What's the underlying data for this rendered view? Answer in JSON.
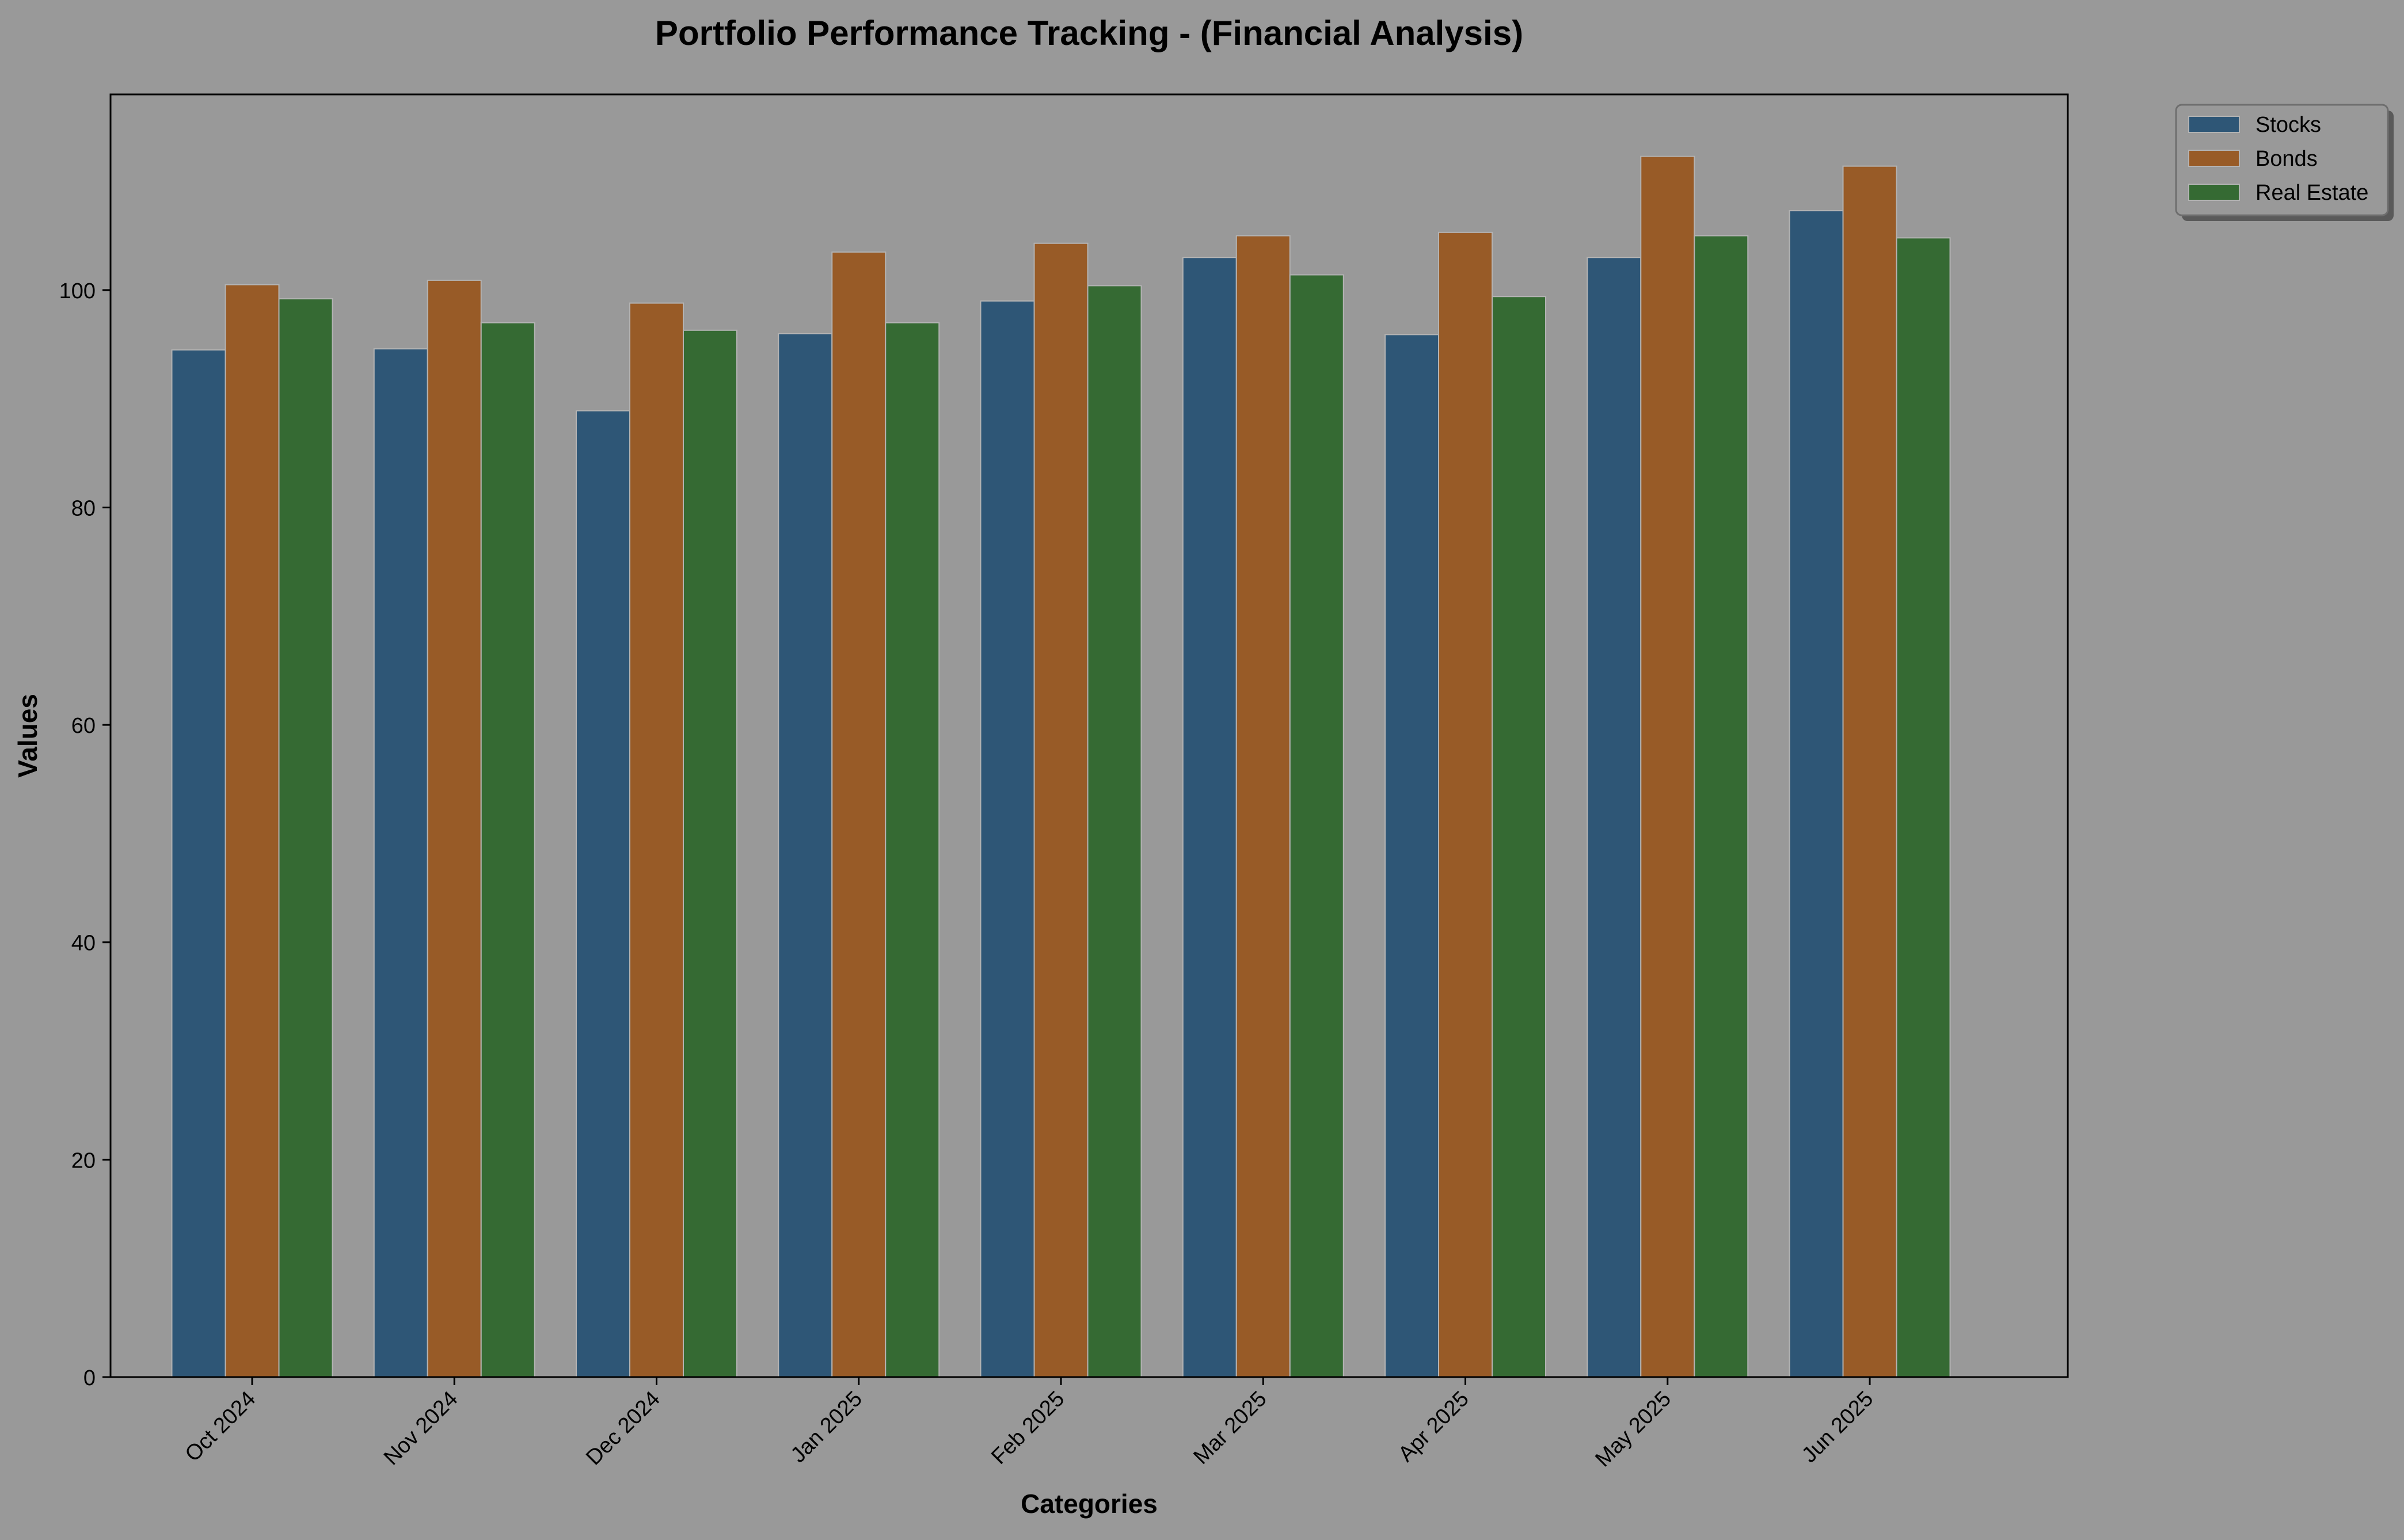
{
  "chart_data": {
    "type": "bar",
    "title": "Portfolio Performance Tracking - (Financial Analysis)",
    "xlabel": "Categories",
    "ylabel": "Values",
    "categories": [
      "Oct 2024",
      "Nov 2024",
      "Dec 2024",
      "Jan 2025",
      "Feb 2025",
      "Mar 2025",
      "Apr 2025",
      "May 2025",
      "Jun 2025"
    ],
    "series": [
      {
        "name": "Stocks",
        "color": "#2e5676",
        "values": [
          94.5,
          94.6,
          88.9,
          96.0,
          99.0,
          103.0,
          95.9,
          103.0,
          107.3
        ]
      },
      {
        "name": "Bonds",
        "color": "#985b27",
        "values": [
          100.5,
          100.9,
          98.8,
          103.5,
          104.3,
          105.0,
          105.3,
          112.3,
          111.4
        ]
      },
      {
        "name": "Real Estate",
        "color": "#356a33",
        "values": [
          99.2,
          97.0,
          96.3,
          97.0,
          100.4,
          101.4,
          99.4,
          105.0,
          104.8
        ]
      }
    ],
    "ylim": [
      0,
      118
    ],
    "yticks": [
      0,
      20,
      40,
      60,
      80,
      100
    ],
    "grid": false,
    "legend_position": "upper-right-outside",
    "background_color": "#999999",
    "bar_edge_color": "#b3b3b3"
  }
}
